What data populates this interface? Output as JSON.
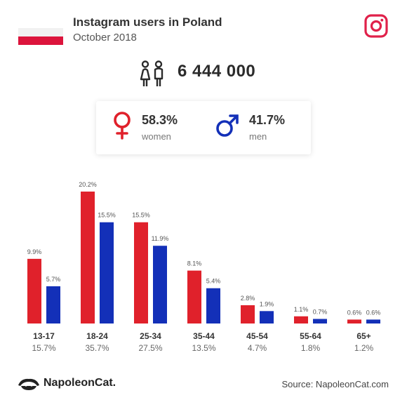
{
  "header": {
    "title": "Instagram users in Poland",
    "subtitle": "October 2018"
  },
  "total_users": "6 444 000",
  "gender": {
    "women_pct": "58.3%",
    "women_label": "women",
    "men_pct": "41.7%",
    "men_label": "men"
  },
  "colors": {
    "women": "#e0212b",
    "men": "#1330b8",
    "flag_red": "#dc143c"
  },
  "icons": [
    "instagram-icon",
    "users-icon",
    "female-icon",
    "male-icon",
    "napoleoncat-logo-icon"
  ],
  "footer": {
    "brand": "NapoleonCat.",
    "source": "Source: NapoleonCat.com"
  },
  "chart_data": {
    "type": "bar",
    "categories": [
      "13-17",
      "18-24",
      "25-34",
      "35-44",
      "45-54",
      "55-64",
      "65+"
    ],
    "category_share_labels": [
      "15.7%",
      "35.7%",
      "27.5%",
      "13.5%",
      "4.7%",
      "1.8%",
      "1.2%"
    ],
    "series": [
      {
        "name": "women",
        "values": [
          9.9,
          20.2,
          15.5,
          8.1,
          2.8,
          1.1,
          0.6
        ],
        "labels": [
          "9.9%",
          "20.2%",
          "15.5%",
          "8.1%",
          "2.8%",
          "1.1%",
          "0.6%"
        ],
        "color": "#e0212b"
      },
      {
        "name": "men",
        "values": [
          5.7,
          15.5,
          11.9,
          5.4,
          1.9,
          0.7,
          0.6
        ],
        "labels": [
          "5.7%",
          "15.5%",
          "11.9%",
          "5.4%",
          "1.9%",
          "0.7%",
          "0.6%"
        ],
        "color": "#1330b8"
      }
    ],
    "ylim": [
      0,
      20.2
    ],
    "grid": false
  }
}
